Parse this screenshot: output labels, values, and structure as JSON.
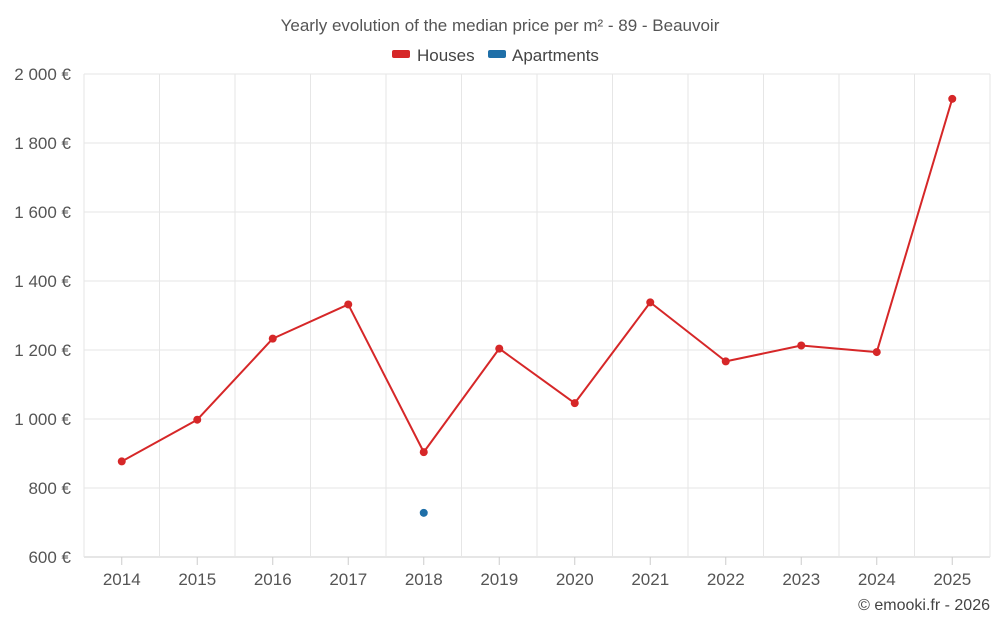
{
  "chart_data": {
    "type": "line",
    "title": "Yearly evolution of the median price per m² - 89 - Beauvoir",
    "categories": [
      "2014",
      "2015",
      "2016",
      "2017",
      "2018",
      "2019",
      "2020",
      "2021",
      "2022",
      "2023",
      "2024",
      "2025"
    ],
    "series": [
      {
        "name": "Houses",
        "color": "#d62728",
        "values": [
          877,
          998,
          1233,
          1332,
          904,
          1204,
          1046,
          1338,
          1167,
          1213,
          1194,
          1928
        ]
      },
      {
        "name": "Apartments",
        "color": "#1f6fa8",
        "values": [
          null,
          null,
          null,
          null,
          728,
          null,
          null,
          null,
          null,
          null,
          null,
          null
        ]
      }
    ],
    "ylim": [
      600,
      2000
    ],
    "yticks": [
      600,
      800,
      1000,
      1200,
      1400,
      1600,
      1800,
      2000
    ],
    "ytick_labels": [
      "600 €",
      "800 €",
      "1 000 €",
      "1 200 €",
      "1 400 €",
      "1 600 €",
      "1 800 €",
      "2 000 €"
    ],
    "legend_position": "top-center",
    "grid": true,
    "credit": "© emooki.fr - 2026"
  }
}
